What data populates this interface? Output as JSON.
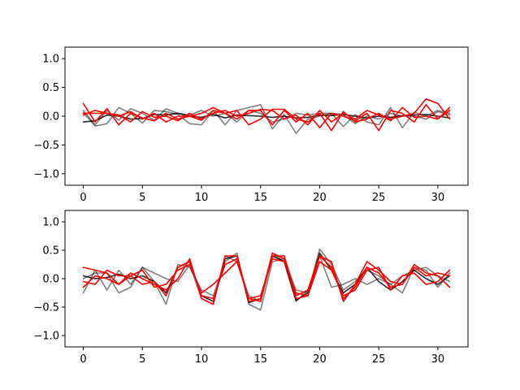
{
  "chart_data": [
    {
      "type": "line",
      "title": "",
      "xlabel": "",
      "ylabel": "",
      "xlim": [
        -1.55,
        32.55
      ],
      "ylim": [
        -1.2,
        1.2
      ],
      "xticks": [
        0,
        5,
        10,
        15,
        20,
        25,
        30
      ],
      "yticks": [
        -1.0,
        -0.5,
        0.0,
        0.5,
        1.0
      ],
      "grid": false,
      "x": [
        0,
        1,
        2,
        3,
        4,
        5,
        6,
        7,
        8,
        9,
        10,
        11,
        12,
        13,
        14,
        15,
        16,
        17,
        18,
        19,
        20,
        21,
        22,
        23,
        24,
        25,
        26,
        27,
        28,
        29,
        30,
        31
      ],
      "series": [
        {
          "color": "#000000",
          "alpha": 0.85,
          "values": [
            -0.1,
            -0.08,
            0.02,
            0.0,
            -0.05,
            -0.04,
            0.03,
            0.02,
            0.05,
            0.0,
            -0.02,
            0.03,
            -0.03,
            0.02,
            0.01,
            0.0,
            -0.02,
            0.0,
            -0.03,
            -0.02,
            0.02,
            0.01,
            0.03,
            0.0,
            -0.03,
            0.0,
            -0.02,
            0.01,
            0.02,
            0.03,
            0.0,
            -0.03
          ]
        },
        {
          "color": "#000000",
          "alpha": 0.5,
          "values": [
            0.06,
            -0.17,
            -0.13,
            0.15,
            0.05,
            -0.12,
            0.1,
            0.08,
            0.03,
            -0.13,
            -0.15,
            0.1,
            -0.15,
            0.1,
            0.15,
            0.2,
            -0.22,
            0.03,
            -0.3,
            -0.05,
            0.0,
            0.05,
            -0.18,
            0.03,
            -0.1,
            -0.15,
            0.15,
            -0.2,
            0.07,
            0.0,
            0.1,
            0.05
          ]
        },
        {
          "color": "#000000",
          "alpha": 0.5,
          "values": [
            0.1,
            -0.15,
            0.1,
            -0.07,
            0.13,
            0.05,
            -0.07,
            0.13,
            0.05,
            0.02,
            0.1,
            0.0,
            0.05,
            -0.1,
            0.1,
            0.05,
            -0.1,
            -0.05,
            0.05,
            0.02,
            0.05,
            0.05,
            0.03,
            -0.13,
            0.0,
            -0.05,
            0.05,
            0.0,
            0.0,
            -0.05,
            0.08,
            0.02
          ]
        },
        {
          "color": "#ff0000",
          "alpha": 1,
          "values": [
            0.22,
            -0.1,
            0.13,
            -0.15,
            0.05,
            -0.03,
            -0.08,
            0.05,
            -0.05,
            0.0,
            0.05,
            0.15,
            0.05,
            -0.05,
            0.1,
            0.1,
            -0.15,
            0.1,
            -0.1,
            0.05,
            -0.2,
            0.05,
            0.0,
            -0.08,
            0.05,
            -0.25,
            0.1,
            0.05,
            -0.1,
            0.2,
            -0.05,
            0.1
          ]
        },
        {
          "color": "#ff0000",
          "alpha": 1,
          "values": [
            0.02,
            0.1,
            0.05,
            0.02,
            -0.1,
            0.08,
            -0.02,
            0.0,
            -0.08,
            0.05,
            -0.05,
            0.05,
            0.1,
            0.0,
            0.05,
            0.12,
            0.1,
            -0.05,
            0.02,
            -0.15,
            0.1,
            -0.1,
            0.05,
            -0.05,
            0.1,
            0.02,
            -0.05,
            0.0,
            0.05,
            0.3,
            0.22,
            -0.05
          ]
        },
        {
          "color": "#ff0000",
          "alpha": 1,
          "values": [
            0.05,
            0.05,
            0.05,
            0.0,
            0.08,
            -0.05,
            0.05,
            -0.1,
            0.0,
            0.0,
            -0.07,
            0.1,
            0.05,
            0.1,
            -0.15,
            -0.05,
            0.12,
            0.12,
            -0.05,
            -0.1,
            0.05,
            -0.25,
            0.08,
            -0.1,
            -0.05,
            0.05,
            -0.08,
            0.15,
            -0.02,
            0.0,
            -0.05,
            0.15
          ]
        }
      ]
    },
    {
      "type": "line",
      "title": "",
      "xlabel": "",
      "ylabel": "",
      "xlim": [
        -1.55,
        32.55
      ],
      "ylim": [
        -1.2,
        1.2
      ],
      "xticks": [
        0,
        5,
        10,
        15,
        20,
        25,
        30
      ],
      "yticks": [
        -1.0,
        -0.5,
        0.0,
        0.5,
        1.0
      ],
      "grid": false,
      "x": [
        0,
        1,
        2,
        3,
        4,
        5,
        6,
        7,
        8,
        9,
        10,
        11,
        12,
        13,
        14,
        15,
        16,
        17,
        18,
        19,
        20,
        21,
        22,
        23,
        24,
        25,
        26,
        27,
        28,
        29,
        30,
        31
      ],
      "series": [
        {
          "color": "#000000",
          "alpha": 0.85,
          "values": [
            0.05,
            0.0,
            0.02,
            0.08,
            0.0,
            0.05,
            -0.05,
            -0.25,
            0.2,
            0.3,
            -0.3,
            -0.4,
            0.35,
            0.4,
            -0.42,
            -0.35,
            0.4,
            0.3,
            -0.38,
            -0.25,
            0.45,
            0.15,
            -0.25,
            -0.1,
            0.2,
            -0.05,
            -0.2,
            -0.05,
            0.15,
            0.0,
            -0.1,
            0.05
          ]
        },
        {
          "color": "#000000",
          "alpha": 0.5,
          "values": [
            -0.25,
            0.15,
            -0.2,
            0.15,
            -0.1,
            0.2,
            -0.05,
            -0.45,
            0.25,
            0.2,
            -0.2,
            -0.3,
            0.3,
            0.45,
            -0.45,
            -0.55,
            0.3,
            0.35,
            -0.2,
            -0.25,
            0.52,
            0.25,
            -0.2,
            -0.05,
            0.15,
            0.05,
            -0.1,
            -0.25,
            0.2,
            0.15,
            -0.15,
            0.1
          ]
        },
        {
          "color": "#000000",
          "alpha": 0.5,
          "values": [
            0.0,
            0.1,
            0.1,
            -0.25,
            -0.15,
            0.2,
            0.1,
            0.0,
            -0.05,
            0.25,
            -0.35,
            -0.45,
            0.4,
            0.3,
            -0.3,
            -0.4,
            0.45,
            0.3,
            -0.4,
            -0.2,
            0.4,
            -0.15,
            -0.1,
            0.0,
            -0.1,
            0.0,
            -0.1,
            0.05,
            0.15,
            0.2,
            0.05,
            -0.05
          ]
        },
        {
          "color": "#ff0000",
          "alpha": 1,
          "values": [
            0.2,
            0.15,
            0.1,
            -0.1,
            0.1,
            0.0,
            -0.1,
            -0.2,
            0.0,
            0.35,
            -0.35,
            -0.45,
            0.4,
            0.4,
            -0.4,
            -0.35,
            0.45,
            0.35,
            -0.35,
            -0.3,
            0.4,
            0.3,
            -0.4,
            -0.1,
            0.3,
            0.15,
            -0.05,
            -0.1,
            0.25,
            0.1,
            0.05,
            -0.15
          ]
        },
        {
          "color": "#ff0000",
          "alpha": 1,
          "values": [
            -0.05,
            -0.1,
            0.15,
            0.05,
            0.05,
            -0.1,
            -0.05,
            -0.3,
            0.2,
            0.3,
            -0.3,
            -0.35,
            0.25,
            0.35,
            -0.35,
            -0.4,
            0.4,
            0.4,
            -0.3,
            -0.2,
            0.4,
            0.2,
            -0.35,
            -0.15,
            0.2,
            0.1,
            -0.15,
            -0.1,
            0.2,
            0.05,
            0.1,
            0.05
          ]
        },
        {
          "color": "#ff0000",
          "alpha": 1,
          "values": [
            -0.15,
            0.05,
            0.0,
            -0.1,
            0.05,
            0.15,
            -0.15,
            -0.1,
            0.15,
            0.25,
            -0.25,
            -0.1,
            0.1,
            0.3,
            -0.35,
            -0.3,
            0.35,
            0.3,
            -0.25,
            -0.3,
            0.3,
            0.15,
            -0.3,
            -0.2,
            0.15,
            0.2,
            -0.2,
            0.05,
            0.1,
            -0.1,
            -0.05,
            0.15
          ]
        }
      ]
    }
  ]
}
